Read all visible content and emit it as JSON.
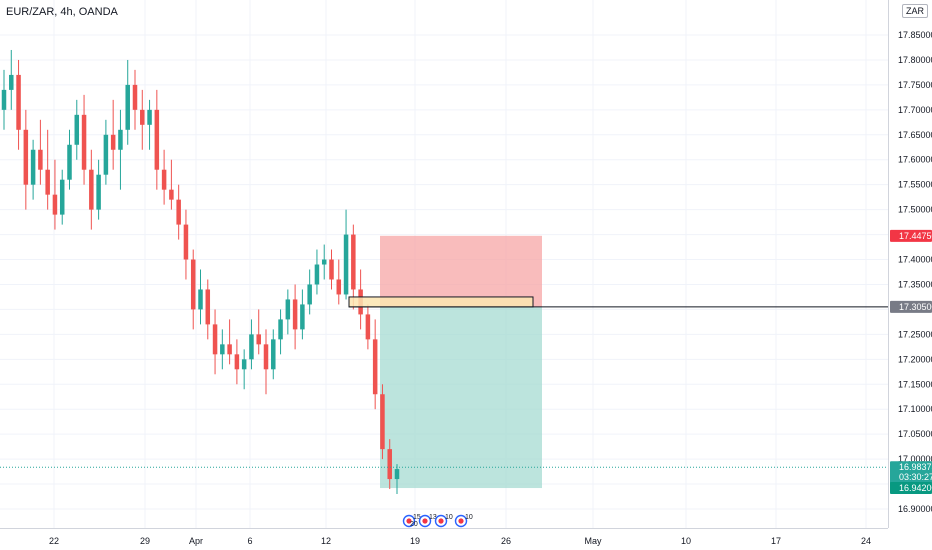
{
  "header": {
    "title": "EUR/ZAR, 4h, OANDA",
    "currency_button": "ZAR"
  },
  "chart_data": {
    "type": "candlestick",
    "y_ticks": [
      "17.85000",
      "17.80000",
      "17.75000",
      "17.70000",
      "17.65000",
      "17.60000",
      "17.55000",
      "17.50000",
      "17.45000",
      "17.40000",
      "17.35000",
      "17.30000",
      "17.25000",
      "17.20000",
      "17.15000",
      "17.10000",
      "17.05000",
      "17.00000",
      "16.95000",
      "16.90000"
    ],
    "x_ticks": [
      "22",
      "29",
      "Apr",
      "6",
      "12",
      "19",
      "26",
      "May",
      "10",
      "17",
      "24"
    ],
    "ylim": [
      16.88,
      17.9
    ],
    "candles": [
      [
        17.7,
        17.78,
        17.66,
        17.74
      ],
      [
        17.74,
        17.82,
        17.7,
        17.77
      ],
      [
        17.77,
        17.8,
        17.62,
        17.66
      ],
      [
        17.66,
        17.7,
        17.5,
        17.55
      ],
      [
        17.55,
        17.64,
        17.52,
        17.62
      ],
      [
        17.62,
        17.68,
        17.55,
        17.58
      ],
      [
        17.58,
        17.66,
        17.5,
        17.53
      ],
      [
        17.53,
        17.6,
        17.46,
        17.49
      ],
      [
        17.49,
        17.58,
        17.47,
        17.56
      ],
      [
        17.56,
        17.66,
        17.54,
        17.63
      ],
      [
        17.63,
        17.72,
        17.6,
        17.69
      ],
      [
        17.69,
        17.73,
        17.55,
        17.58
      ],
      [
        17.58,
        17.62,
        17.46,
        17.5
      ],
      [
        17.5,
        17.6,
        17.48,
        17.57
      ],
      [
        17.57,
        17.68,
        17.55,
        17.65
      ],
      [
        17.65,
        17.72,
        17.58,
        17.62
      ],
      [
        17.62,
        17.7,
        17.54,
        17.66
      ],
      [
        17.66,
        17.8,
        17.63,
        17.75
      ],
      [
        17.75,
        17.78,
        17.66,
        17.7
      ],
      [
        17.7,
        17.74,
        17.62,
        17.67
      ],
      [
        17.67,
        17.72,
        17.62,
        17.7
      ],
      [
        17.7,
        17.74,
        17.54,
        17.58
      ],
      [
        17.58,
        17.62,
        17.51,
        17.54
      ],
      [
        17.54,
        17.6,
        17.5,
        17.52
      ],
      [
        17.52,
        17.55,
        17.44,
        17.47
      ],
      [
        17.47,
        17.5,
        17.36,
        17.4
      ],
      [
        17.4,
        17.42,
        17.26,
        17.3
      ],
      [
        17.3,
        17.38,
        17.27,
        17.34
      ],
      [
        17.34,
        17.36,
        17.24,
        17.27
      ],
      [
        17.27,
        17.3,
        17.17,
        17.21
      ],
      [
        17.21,
        17.26,
        17.18,
        17.23
      ],
      [
        17.23,
        17.28,
        17.19,
        17.21
      ],
      [
        17.21,
        17.24,
        17.15,
        17.18
      ],
      [
        17.18,
        17.22,
        17.14,
        17.2
      ],
      [
        17.2,
        17.28,
        17.18,
        17.25
      ],
      [
        17.25,
        17.3,
        17.21,
        17.23
      ],
      [
        17.23,
        17.26,
        17.13,
        17.18
      ],
      [
        17.18,
        17.26,
        17.16,
        17.24
      ],
      [
        17.24,
        17.3,
        17.21,
        17.28
      ],
      [
        17.28,
        17.34,
        17.25,
        17.32
      ],
      [
        17.32,
        17.35,
        17.22,
        17.26
      ],
      [
        17.26,
        17.34,
        17.24,
        17.31
      ],
      [
        17.31,
        17.38,
        17.29,
        17.35
      ],
      [
        17.35,
        17.42,
        17.33,
        17.39
      ],
      [
        17.39,
        17.43,
        17.36,
        17.4
      ],
      [
        17.4,
        17.42,
        17.34,
        17.36
      ],
      [
        17.36,
        17.4,
        17.31,
        17.33
      ],
      [
        17.33,
        17.5,
        17.32,
        17.45
      ],
      [
        17.45,
        17.47,
        17.3,
        17.34
      ],
      [
        17.34,
        17.38,
        17.26,
        17.29
      ],
      [
        17.29,
        17.31,
        17.22,
        17.24
      ],
      [
        17.24,
        17.28,
        17.1,
        17.13
      ],
      [
        17.13,
        17.15,
        17.0,
        17.02
      ],
      [
        17.02,
        17.04,
        16.94,
        16.96
      ],
      [
        16.96,
        16.99,
        16.93,
        16.98
      ]
    ],
    "position": {
      "stop": 17.4475,
      "entry": 17.305,
      "target": 16.942
    },
    "last_price": "16.98373",
    "countdown": "03:30:27",
    "price_badges": {
      "stop": "17.44750",
      "entry": "17.30500",
      "target": "16.94200",
      "last": "16.98373"
    },
    "events": [
      {
        "label": "15",
        "tag": "20"
      },
      {
        "label": "13"
      },
      {
        "label": "10"
      },
      {
        "label": "10"
      }
    ],
    "colors": {
      "up": "#26a69a",
      "down": "#ef5350",
      "stop_zone": "#f7a5a5",
      "target_zone": "#9fd8cf",
      "entry_badge": "#787b86",
      "stop_badge": "#f23645",
      "target_badge": "#089981",
      "last_badge": "#26a69a"
    }
  }
}
